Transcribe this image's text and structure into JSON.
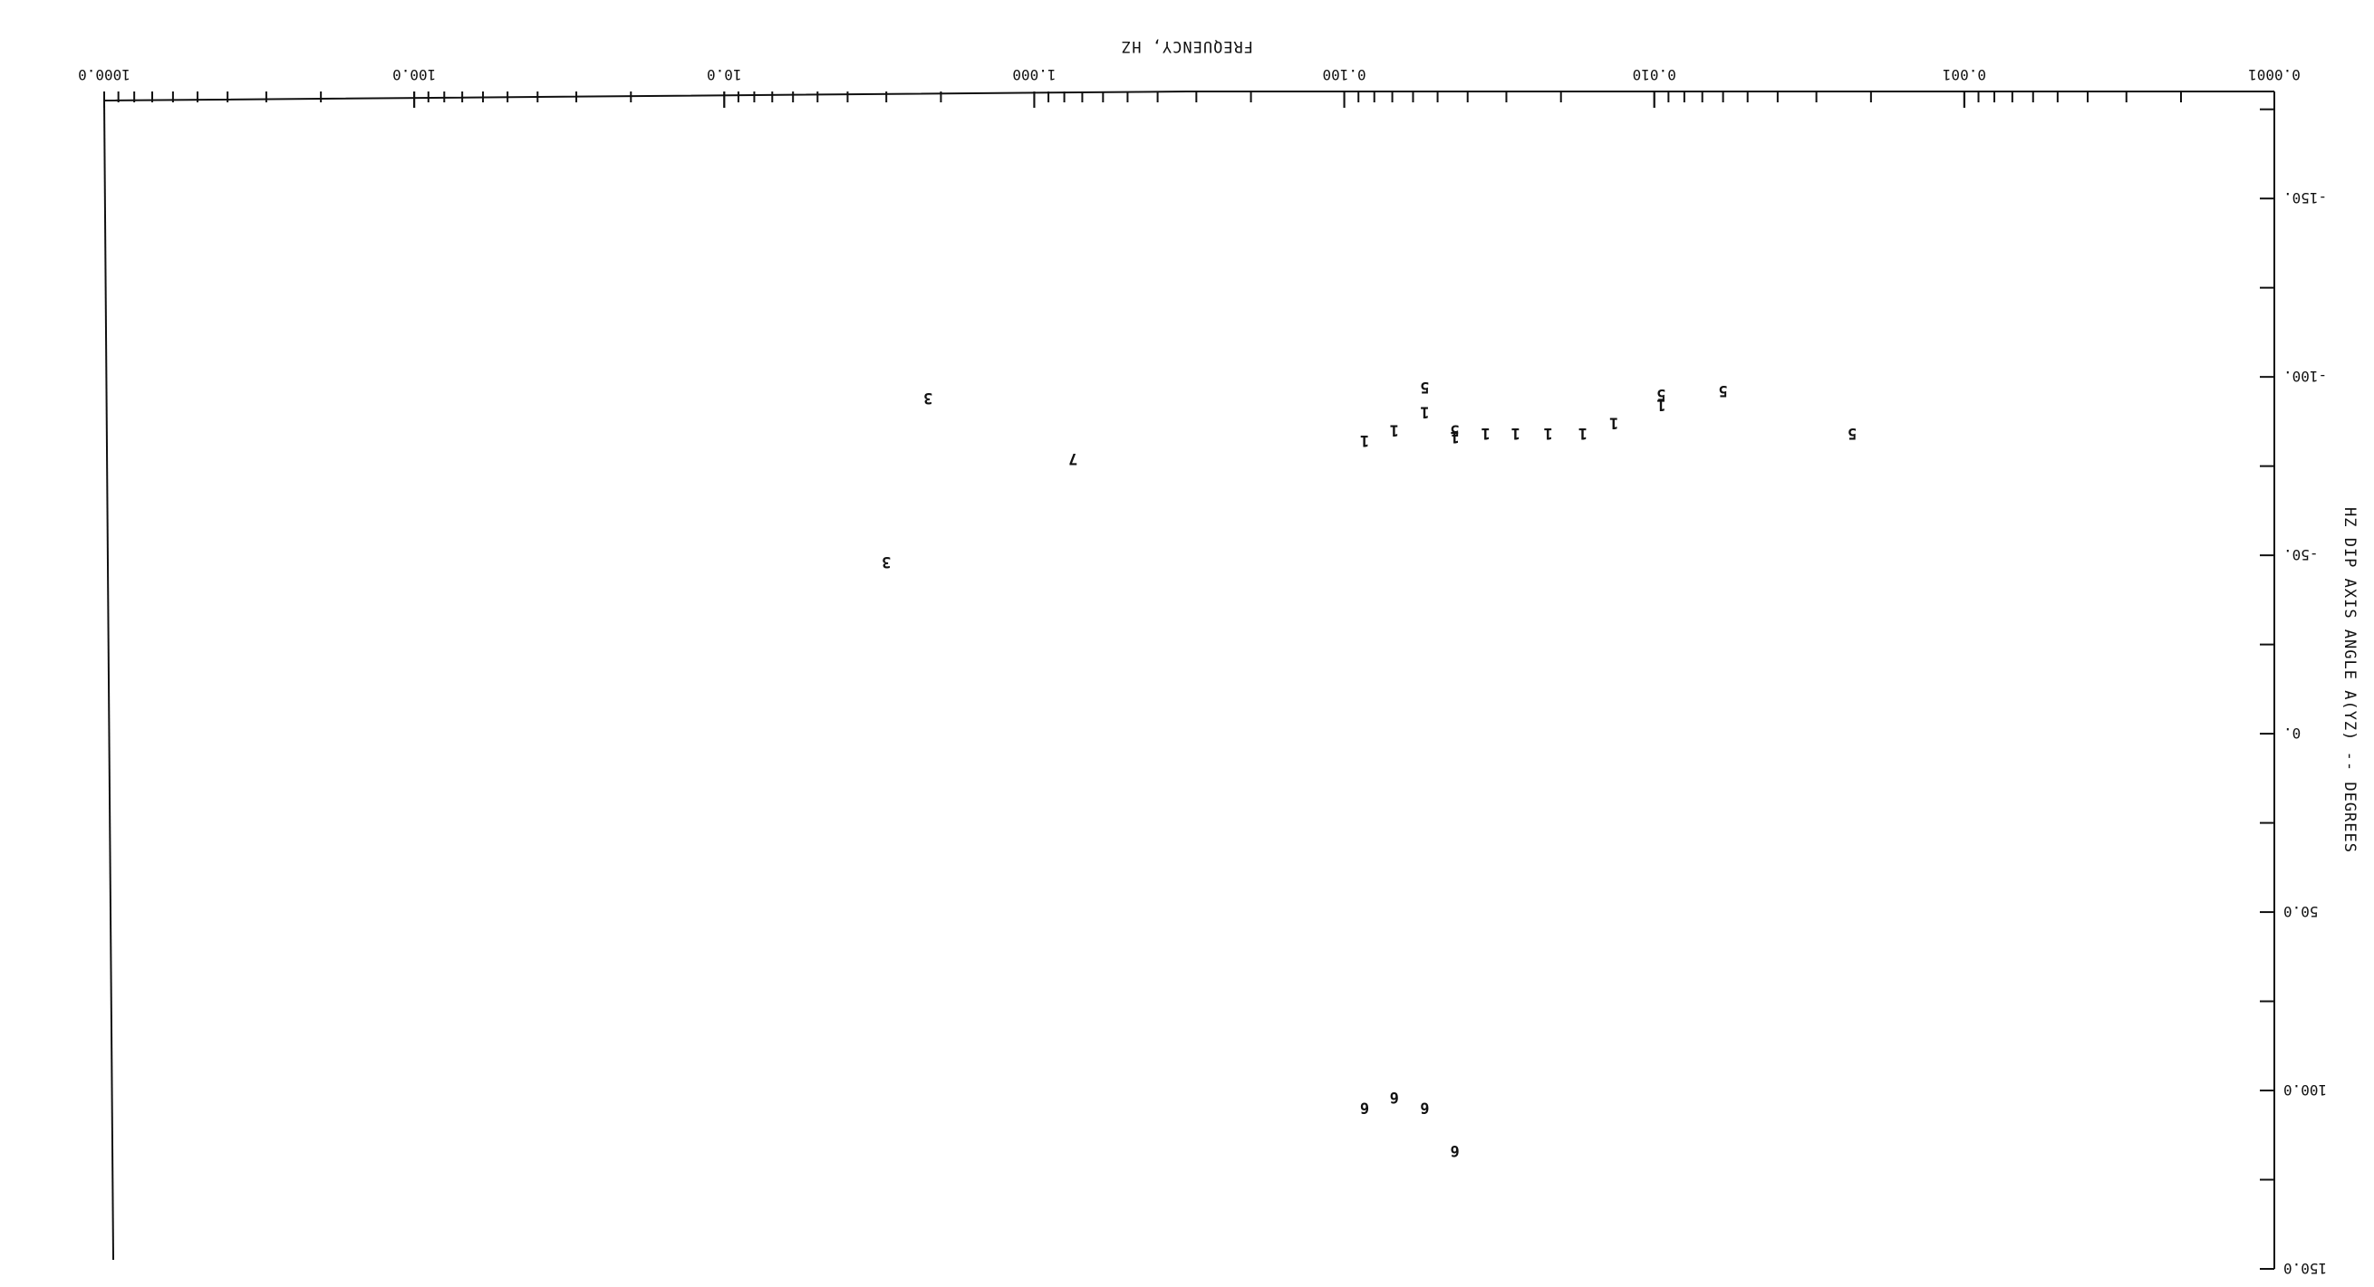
{
  "chart_data": {
    "type": "scatter",
    "title": "",
    "xlabel": "FREQUENCY, HZ",
    "ylabel": "HZ DIP AXIS ANGLE A(YZ) -- DEGREES",
    "x_scale": "log",
    "xlim": [
      0.0001,
      1000.0
    ],
    "ylim": [
      -180,
      150
    ],
    "x_tick_labels": [
      "0.0001",
      "0.001",
      "0.010",
      "0.100",
      "1.000",
      "10.0",
      "100.0",
      "1000.0"
    ],
    "y_tick_labels": [
      "-150.",
      "-100.",
      "-50.",
      "0.",
      "50.0",
      "100.0",
      "150.0"
    ],
    "grid": false,
    "orientation": "rotated-180",
    "points": [
      {
        "label": "3",
        "x": 2.2,
        "y": -94
      },
      {
        "label": "3",
        "x": 3.0,
        "y": -48
      },
      {
        "label": "7",
        "x": 0.75,
        "y": -77
      },
      {
        "label": "1",
        "x": 0.086,
        "y": -82
      },
      {
        "label": "1",
        "x": 0.069,
        "y": -85
      },
      {
        "label": "1",
        "x": 0.055,
        "y": -90
      },
      {
        "label": "1",
        "x": 0.044,
        "y": -83
      },
      {
        "label": "1",
        "x": 0.035,
        "y": -84
      },
      {
        "label": "1",
        "x": 0.028,
        "y": -84
      },
      {
        "label": "1",
        "x": 0.022,
        "y": -84
      },
      {
        "label": "1",
        "x": 0.017,
        "y": -84
      },
      {
        "label": "1",
        "x": 0.0135,
        "y": -87
      },
      {
        "label": "1",
        "x": 0.0095,
        "y": -92
      },
      {
        "label": "5",
        "x": 0.055,
        "y": -97
      },
      {
        "label": "5",
        "x": 0.044,
        "y": -85
      },
      {
        "label": "5",
        "x": 0.0095,
        "y": -95
      },
      {
        "label": "5",
        "x": 0.006,
        "y": -96
      },
      {
        "label": "5",
        "x": 0.0023,
        "y": -84
      },
      {
        "label": "6",
        "x": 0.086,
        "y": 105
      },
      {
        "label": "6",
        "x": 0.069,
        "y": 102
      },
      {
        "label": "6",
        "x": 0.055,
        "y": 105
      },
      {
        "label": "6",
        "x": 0.044,
        "y": 117
      }
    ]
  }
}
